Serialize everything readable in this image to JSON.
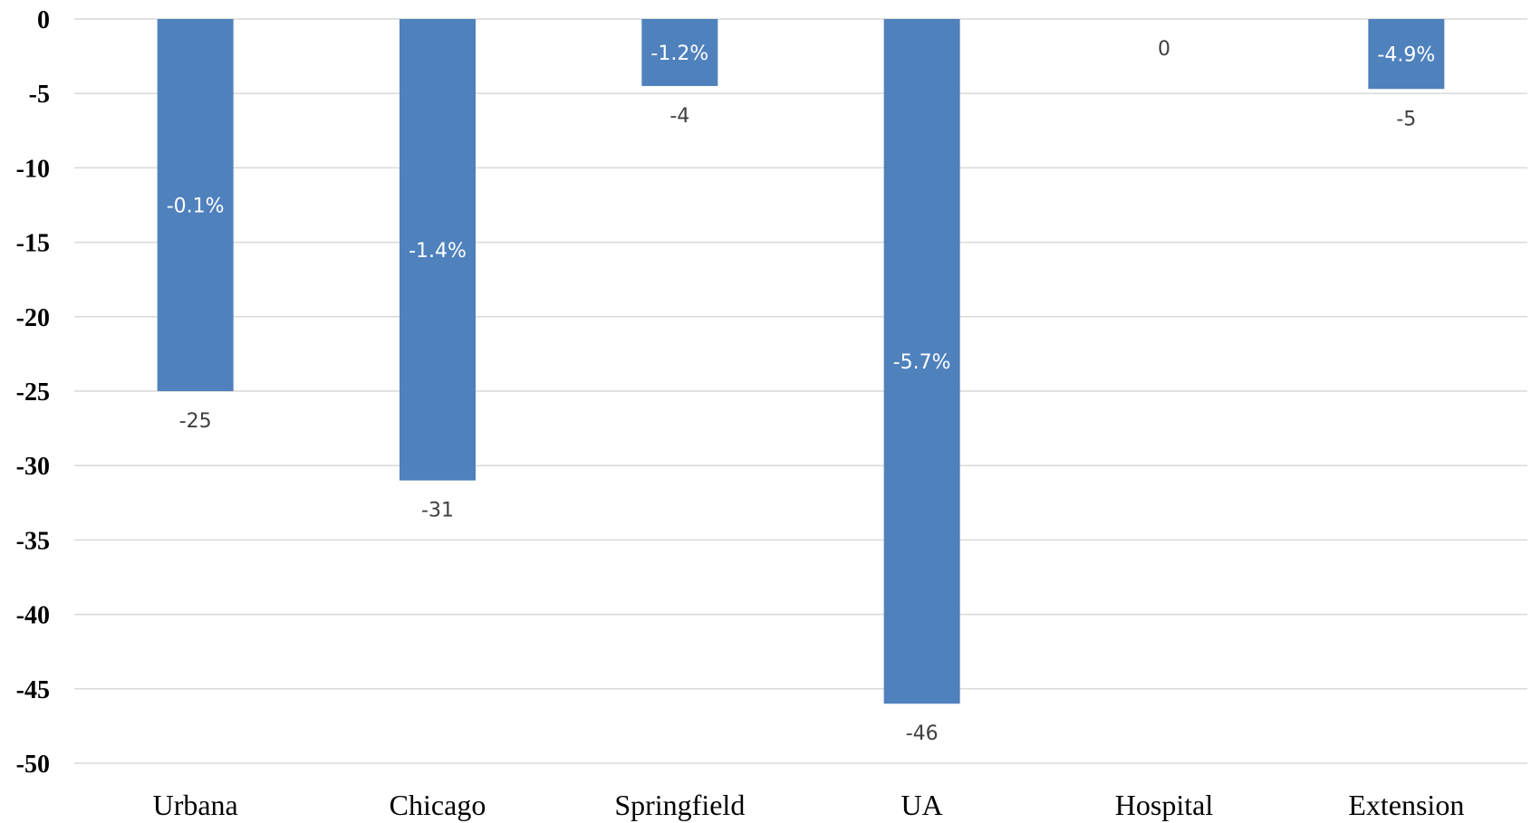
{
  "chart_data": {
    "type": "bar",
    "categories": [
      "Urbana",
      "Chicago",
      "Springfield",
      "UA",
      "Hospital",
      "Extension"
    ],
    "values": [
      -25,
      -31,
      -4.5,
      -46,
      0,
      -4.7
    ],
    "value_labels": [
      "-25",
      "-31",
      "-4",
      "-46",
      "0",
      "-5"
    ],
    "percent_labels": [
      "-0.1%",
      "-1.4%",
      "-1.2%",
      "-5.7%",
      "",
      "-4.9%"
    ],
    "ylim": [
      -50,
      0
    ],
    "yticks": [
      0,
      -5,
      -10,
      -15,
      -20,
      -25,
      -30,
      -35,
      -40,
      -45,
      -50
    ],
    "ytick_labels": [
      "0",
      "-5",
      "-10",
      "-15",
      "-20",
      "-25",
      "-30",
      "-35",
      "-40",
      "-45",
      "-50"
    ],
    "title": "",
    "xlabel": "",
    "ylabel": "",
    "grid": true,
    "bar_color": "#4f81bd"
  }
}
